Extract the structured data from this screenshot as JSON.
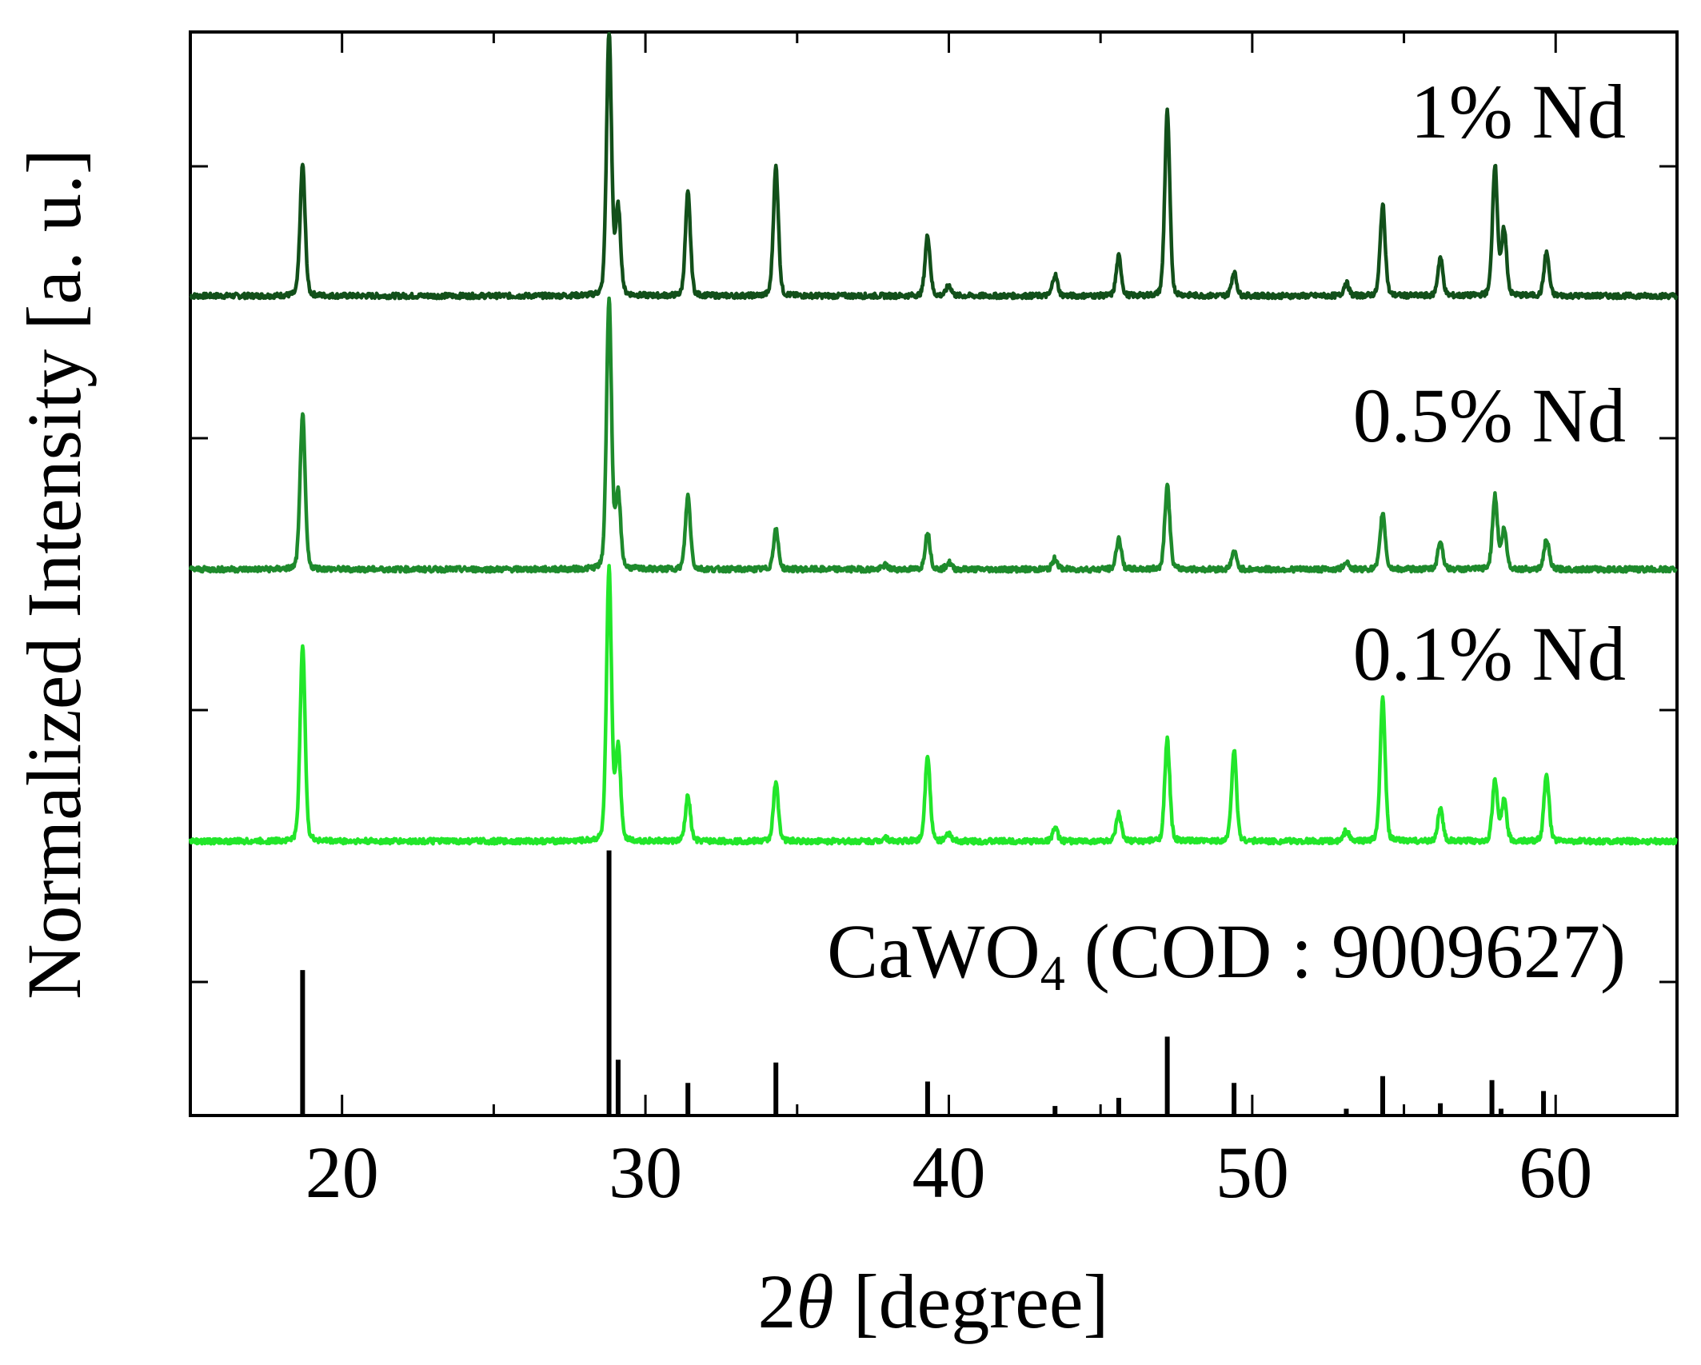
{
  "chart_data": {
    "type": "line",
    "xlabel_prefix": "2",
    "xlabel_theta": "θ",
    "xlabel_suffix": " [degree]",
    "ylabel": "Normalized Intensity [a. u.]",
    "xlim": [
      15,
      64
    ],
    "xticks": [
      20,
      30,
      40,
      50,
      60
    ],
    "grid": false,
    "colors": {
      "nd1": "#12501a",
      "nd05": "#1e8a2c",
      "nd01": "#22e62a",
      "reference": "#000000"
    },
    "series": [
      {
        "name": "1% Nd",
        "color_key": "nd1",
        "peaks": [
          [
            18.7,
            1.0
          ],
          [
            28.8,
            2.0
          ],
          [
            29.1,
            0.66
          ],
          [
            31.4,
            0.78
          ],
          [
            34.3,
            0.98
          ],
          [
            39.3,
            0.46
          ],
          [
            40.0,
            0.08
          ],
          [
            43.5,
            0.16
          ],
          [
            45.6,
            0.3
          ],
          [
            47.2,
            1.4
          ],
          [
            49.4,
            0.18
          ],
          [
            53.1,
            0.1
          ],
          [
            54.3,
            0.69
          ],
          [
            56.2,
            0.29
          ],
          [
            58.0,
            0.99
          ],
          [
            58.3,
            0.5
          ],
          [
            59.7,
            0.33
          ]
        ]
      },
      {
        "name": "0.5% Nd",
        "color_key": "nd05",
        "peaks": [
          [
            18.7,
            1.15
          ],
          [
            28.8,
            2.0
          ],
          [
            29.1,
            0.55
          ],
          [
            31.4,
            0.54
          ],
          [
            34.3,
            0.29
          ],
          [
            37.9,
            0.03
          ],
          [
            39.3,
            0.27
          ],
          [
            40.0,
            0.05
          ],
          [
            43.5,
            0.08
          ],
          [
            45.6,
            0.23
          ],
          [
            47.2,
            0.62
          ],
          [
            49.4,
            0.13
          ],
          [
            53.1,
            0.06
          ],
          [
            54.3,
            0.42
          ],
          [
            56.2,
            0.21
          ],
          [
            58.0,
            0.54
          ],
          [
            58.3,
            0.29
          ],
          [
            59.7,
            0.22
          ]
        ]
      },
      {
        "name": "0.1% Nd",
        "color_key": "nd01",
        "peaks": [
          [
            18.7,
            1.45
          ],
          [
            28.8,
            2.0
          ],
          [
            29.1,
            0.69
          ],
          [
            31.4,
            0.33
          ],
          [
            34.3,
            0.43
          ],
          [
            37.9,
            0.03
          ],
          [
            39.3,
            0.64
          ],
          [
            40.0,
            0.05
          ],
          [
            43.5,
            0.1
          ],
          [
            45.6,
            0.2
          ],
          [
            47.2,
            0.75
          ],
          [
            49.4,
            0.67
          ],
          [
            53.1,
            0.08
          ],
          [
            54.3,
            1.05
          ],
          [
            56.2,
            0.24
          ],
          [
            58.0,
            0.45
          ],
          [
            58.3,
            0.3
          ],
          [
            59.7,
            0.5
          ]
        ]
      }
    ],
    "reference": {
      "name_main": "CaWO",
      "name_sub": "4",
      "name_rest": " (COD : 9009627)",
      "sticks": [
        [
          18.7,
          1.07
        ],
        [
          28.8,
          1.95
        ],
        [
          29.1,
          0.41
        ],
        [
          31.4,
          0.24
        ],
        [
          34.3,
          0.39
        ],
        [
          37.9,
          0.01
        ],
        [
          39.3,
          0.25
        ],
        [
          43.5,
          0.07
        ],
        [
          45.6,
          0.13
        ],
        [
          47.2,
          0.58
        ],
        [
          49.4,
          0.24
        ],
        [
          53.1,
          0.05
        ],
        [
          54.3,
          0.29
        ],
        [
          56.2,
          0.09
        ],
        [
          57.9,
          0.26
        ],
        [
          58.2,
          0.05
        ],
        [
          59.6,
          0.18
        ]
      ]
    }
  }
}
